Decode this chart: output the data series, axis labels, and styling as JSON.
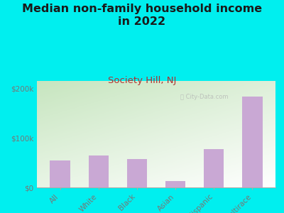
{
  "title": "Median non-family household income\nin 2022",
  "subtitle": "Society Hill, NJ",
  "categories": [
    "All",
    "White",
    "Black",
    "Asian",
    "Hispanic",
    "Multirace"
  ],
  "values": [
    55000,
    65000,
    58000,
    13000,
    78000,
    183000
  ],
  "bar_color": "#c9a8d4",
  "background_outer": "#00efef",
  "plot_bg_topleft": "#c8e6c0",
  "plot_bg_white": "#f8fff8",
  "title_color": "#1a1a1a",
  "subtitle_color": "#b03030",
  "tick_label_color": "#777777",
  "ylabel_ticks": [
    "$0",
    "$100k",
    "$200k"
  ],
  "ylabel_values": [
    0,
    100000,
    200000
  ],
  "ylim": [
    0,
    215000
  ],
  "title_fontsize": 11.5,
  "subtitle_fontsize": 9.5,
  "tick_fontsize": 7.5
}
